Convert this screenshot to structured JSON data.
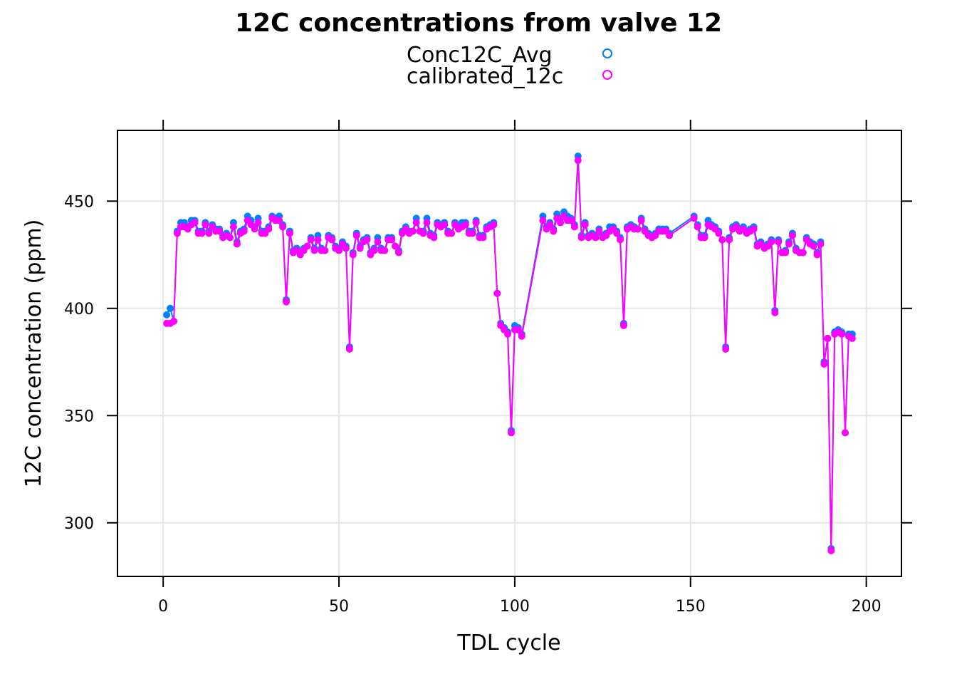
{
  "chart_data": {
    "type": "line",
    "title": "12C concentrations from valve 12",
    "xlabel": "TDL cycle",
    "ylabel": "12C concentration (ppm)",
    "xlim": [
      -13,
      210
    ],
    "ylim": [
      275,
      483
    ],
    "xticks": [
      0,
      50,
      100,
      150,
      200
    ],
    "yticks": [
      300,
      350,
      400,
      450
    ],
    "grid": true,
    "legend_position": "top-center",
    "series": [
      {
        "name": "Conc12C_Avg",
        "color": "#0080ff",
        "x": [
          1,
          2,
          3,
          4,
          5,
          6,
          7,
          8,
          9,
          10,
          11,
          12,
          13,
          14,
          15,
          16,
          17,
          18,
          19,
          20,
          21,
          22,
          23,
          24,
          25,
          26,
          27,
          28,
          29,
          30,
          31,
          32,
          33,
          34,
          35,
          36,
          37,
          38,
          39,
          40,
          41,
          42,
          43,
          44,
          45,
          46,
          47,
          48,
          49,
          50,
          51,
          52,
          53,
          54,
          55,
          56,
          57,
          58,
          59,
          60,
          61,
          62,
          63,
          64,
          65,
          66,
          67,
          68,
          69,
          70,
          71,
          72,
          73,
          74,
          75,
          76,
          77,
          78,
          79,
          80,
          81,
          82,
          83,
          84,
          85,
          86,
          87,
          88,
          89,
          90,
          91,
          92,
          93,
          94,
          95,
          96,
          97,
          98,
          99,
          100,
          101,
          102,
          108,
          109,
          110,
          111,
          112,
          113,
          114,
          115,
          116,
          117,
          118,
          119,
          120,
          121,
          122,
          123,
          124,
          125,
          126,
          127,
          128,
          129,
          130,
          131,
          132,
          133,
          134,
          135,
          136,
          137,
          138,
          139,
          140,
          141,
          142,
          143,
          144,
          151,
          152,
          153,
          154,
          155,
          156,
          157,
          158,
          159,
          160,
          161,
          162,
          163,
          164,
          165,
          166,
          167,
          168,
          169,
          170,
          171,
          172,
          173,
          174,
          175,
          176,
          177,
          178,
          179,
          180,
          181,
          182,
          183,
          184,
          185,
          186,
          187,
          188,
          189,
          190,
          191,
          192,
          193,
          194,
          195,
          196
        ],
        "y": [
          397,
          400,
          394,
          436,
          440,
          440,
          438,
          441,
          441,
          436,
          436,
          440,
          436,
          439,
          437,
          437,
          434,
          435,
          433,
          440,
          431,
          436,
          437,
          443,
          441,
          438,
          442,
          436,
          436,
          438,
          443,
          442,
          443,
          439,
          404,
          436,
          427,
          428,
          426,
          428,
          429,
          433,
          428,
          434,
          428,
          427,
          434,
          433,
          429,
          428,
          431,
          429,
          382,
          426,
          435,
          429,
          432,
          433,
          426,
          428,
          433,
          428,
          427,
          433,
          433,
          429,
          427,
          436,
          438,
          436,
          436,
          442,
          436,
          436,
          442,
          435,
          434,
          440,
          439,
          440,
          436,
          435,
          440,
          438,
          440,
          440,
          436,
          436,
          441,
          434,
          434,
          438,
          439,
          440,
          407,
          393,
          391,
          389,
          343,
          392,
          391,
          388,
          443,
          438,
          440,
          437,
          444,
          442,
          445,
          443,
          442,
          439,
          471,
          434,
          440,
          434,
          435,
          434,
          437,
          434,
          435,
          438,
          438,
          436,
          433,
          393,
          438,
          439,
          438,
          437,
          442,
          437,
          435,
          434,
          435,
          437,
          437,
          437,
          435,
          443,
          439,
          434,
          434,
          441,
          439,
          438,
          436,
          432,
          382,
          433,
          438,
          439,
          437,
          438,
          436,
          437,
          438,
          430,
          431,
          429,
          430,
          432,
          399,
          432,
          426,
          427,
          431,
          435,
          428,
          426,
          426,
          433,
          431,
          430,
          426,
          431,
          375,
          386,
          288,
          389,
          390,
          389,
          342,
          388,
          388
        ],
        "label": "Conc12C_Avg"
      },
      {
        "name": "calibrated_12c",
        "color": "#ff00ff",
        "x": [
          1,
          2,
          3,
          4,
          5,
          6,
          7,
          8,
          9,
          10,
          11,
          12,
          13,
          14,
          15,
          16,
          17,
          18,
          19,
          20,
          21,
          22,
          23,
          24,
          25,
          26,
          27,
          28,
          29,
          30,
          31,
          32,
          33,
          34,
          35,
          36,
          37,
          38,
          39,
          40,
          41,
          42,
          43,
          44,
          45,
          46,
          47,
          48,
          49,
          50,
          51,
          52,
          53,
          54,
          55,
          56,
          57,
          58,
          59,
          60,
          61,
          62,
          63,
          64,
          65,
          66,
          67,
          68,
          69,
          70,
          71,
          72,
          73,
          74,
          75,
          76,
          77,
          78,
          79,
          80,
          81,
          82,
          83,
          84,
          85,
          86,
          87,
          88,
          89,
          90,
          91,
          92,
          93,
          94,
          95,
          96,
          97,
          98,
          99,
          100,
          101,
          102,
          108,
          109,
          110,
          111,
          112,
          113,
          114,
          115,
          116,
          117,
          118,
          119,
          120,
          121,
          122,
          123,
          124,
          125,
          126,
          127,
          128,
          129,
          130,
          131,
          132,
          133,
          134,
          135,
          136,
          137,
          138,
          139,
          140,
          141,
          142,
          143,
          144,
          151,
          152,
          153,
          154,
          155,
          156,
          157,
          158,
          159,
          160,
          161,
          162,
          163,
          164,
          165,
          166,
          167,
          168,
          169,
          170,
          171,
          172,
          173,
          174,
          175,
          176,
          177,
          178,
          179,
          180,
          181,
          182,
          183,
          184,
          185,
          186,
          187,
          188,
          189,
          190,
          191,
          192,
          193,
          194,
          195,
          196
        ],
        "y": [
          393,
          393,
          394,
          435,
          438,
          438,
          437,
          439,
          440,
          435,
          435,
          439,
          435,
          438,
          436,
          436,
          433,
          434,
          433,
          438,
          430,
          435,
          436,
          441,
          439,
          437,
          440,
          435,
          435,
          437,
          442,
          441,
          441,
          438,
          403,
          435,
          426,
          427,
          425,
          427,
          429,
          432,
          427,
          432,
          427,
          427,
          433,
          432,
          428,
          427,
          430,
          428,
          381,
          425,
          434,
          428,
          431,
          432,
          425,
          427,
          431,
          427,
          427,
          432,
          432,
          429,
          426,
          435,
          437,
          435,
          436,
          440,
          436,
          435,
          440,
          434,
          433,
          439,
          438,
          439,
          435,
          435,
          439,
          437,
          438,
          439,
          435,
          435,
          440,
          433,
          433,
          437,
          438,
          439,
          407,
          392,
          390,
          388,
          342,
          390,
          390,
          387,
          441,
          437,
          439,
          436,
          442,
          440,
          443,
          441,
          441,
          438,
          469,
          433,
          439,
          433,
          434,
          433,
          436,
          433,
          434,
          436,
          437,
          435,
          432,
          392,
          437,
          438,
          437,
          437,
          441,
          436,
          434,
          433,
          434,
          436,
          436,
          436,
          434,
          442,
          438,
          433,
          433,
          439,
          438,
          437,
          435,
          432,
          381,
          432,
          437,
          438,
          436,
          437,
          435,
          436,
          437,
          429,
          430,
          428,
          429,
          431,
          398,
          431,
          426,
          426,
          430,
          434,
          427,
          426,
          426,
          432,
          430,
          429,
          425,
          430,
          374,
          386,
          287,
          388,
          389,
          388,
          342,
          387,
          386
        ],
        "label": "calibrated_12c"
      }
    ]
  }
}
